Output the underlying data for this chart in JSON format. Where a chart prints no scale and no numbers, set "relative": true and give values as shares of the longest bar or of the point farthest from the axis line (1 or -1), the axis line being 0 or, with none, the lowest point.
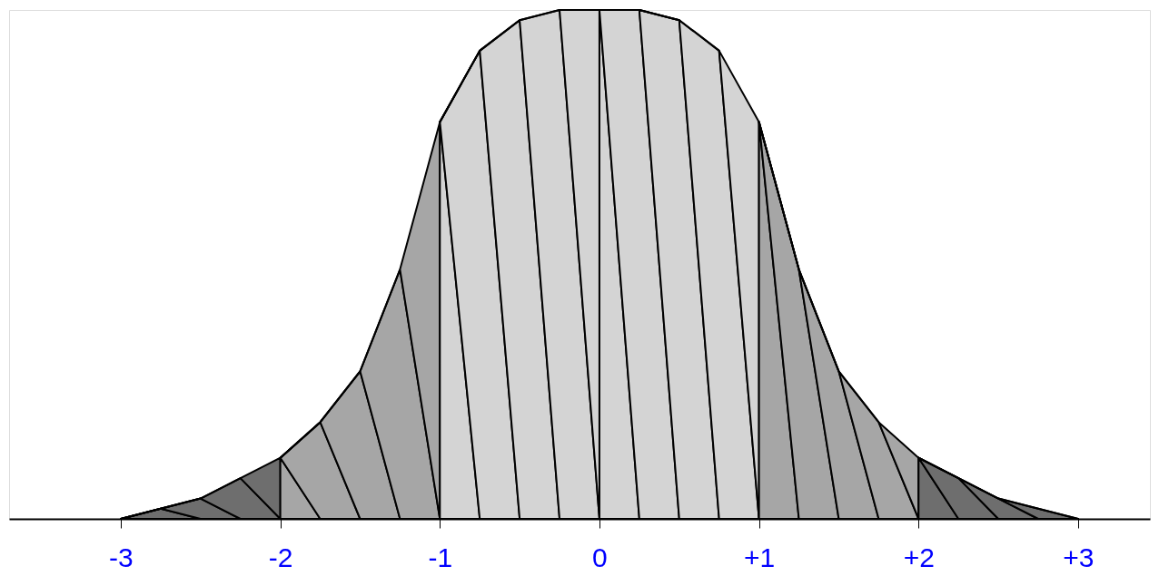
{
  "chart_data": {
    "type": "area",
    "relative": true,
    "series": [
      {
        "color": "#6e6e6e",
        "x": [
          -3,
          -2.75,
          -2.5,
          -2.25,
          -2
        ],
        "values": [
          0,
          0.02,
          0.04,
          0.08,
          0.12
        ]
      },
      {
        "color": "#a6a6a6",
        "x": [
          -2,
          -1.75,
          -1.5,
          -1.25,
          -1
        ],
        "values": [
          0.12,
          0.19,
          0.29,
          0.49,
          0.78
        ]
      },
      {
        "color": "#d4d4d4",
        "x": [
          -1,
          -0.75,
          -0.5,
          -0.25,
          0
        ],
        "values": [
          0.78,
          0.92,
          0.98,
          1,
          1
        ]
      },
      {
        "color": "#d4d4d4",
        "x": [
          0,
          0.25,
          0.5,
          0.75,
          1
        ],
        "values": [
          1,
          1,
          0.98,
          0.92,
          0.78
        ]
      },
      {
        "color": "#a6a6a6",
        "x": [
          1,
          1.25,
          1.5,
          1.75,
          2
        ],
        "values": [
          0.78,
          0.49,
          0.29,
          0.19,
          0.12
        ]
      },
      {
        "color": "#6e6e6e",
        "x": [
          2,
          2.25,
          2.5,
          2.75,
          3
        ],
        "values": [
          0.12,
          0.08,
          0.04,
          0.02,
          0
        ]
      }
    ],
    "xlim": [
      -3.7,
      3.45
    ],
    "xticks": [
      {
        "value": -3,
        "label": "-3"
      },
      {
        "value": -2,
        "label": "-2"
      },
      {
        "value": -1,
        "label": "-1"
      },
      0,
      {
        "value": 1,
        "label": "+1"
      },
      {
        "value": 2,
        "label": "+2"
      },
      {
        "value": 3,
        "label": "+3"
      }
    ],
    "grid": false
  }
}
